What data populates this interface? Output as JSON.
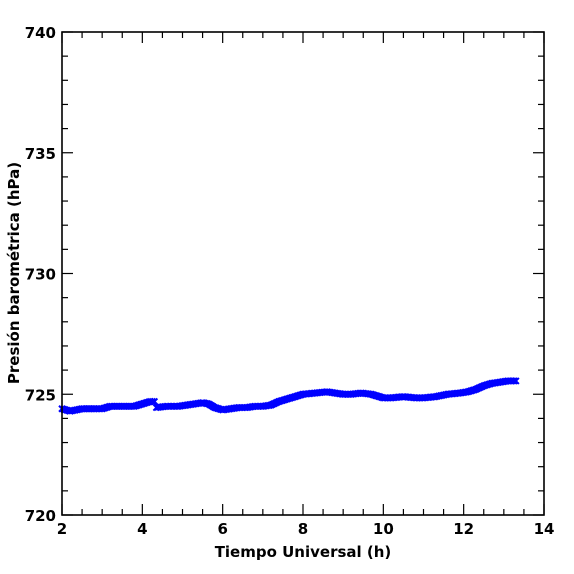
{
  "chart_data": {
    "type": "scatter",
    "title": "",
    "xlabel": "Tiempo Universal (h)",
    "ylabel": "Presión barométrica (hPa)",
    "xlim": [
      2,
      14
    ],
    "ylim": [
      720,
      740
    ],
    "x_ticks": [
      2,
      4,
      6,
      8,
      10,
      12,
      14
    ],
    "y_ticks": [
      720,
      725,
      730,
      735,
      740
    ],
    "grid": false,
    "legend": "none",
    "marker_color": "#0000ff",
    "series": [
      {
        "points": [
          [
            2.0,
            724.4
          ],
          [
            2.2,
            724.3
          ],
          [
            2.5,
            724.4
          ],
          [
            2.8,
            724.4
          ],
          [
            3.0,
            724.4
          ],
          [
            3.2,
            724.5
          ],
          [
            3.5,
            724.5
          ],
          [
            3.8,
            724.5
          ],
          [
            4.0,
            724.6
          ],
          [
            4.2,
            724.7
          ],
          [
            4.3,
            724.7
          ],
          [
            4.35,
            724.45
          ],
          [
            4.6,
            724.5
          ],
          [
            4.9,
            724.5
          ],
          [
            5.1,
            724.55
          ],
          [
            5.3,
            724.6
          ],
          [
            5.5,
            724.65
          ],
          [
            5.65,
            724.6
          ],
          [
            5.8,
            724.45
          ],
          [
            6.0,
            724.35
          ],
          [
            6.2,
            724.4
          ],
          [
            6.4,
            724.45
          ],
          [
            6.6,
            724.45
          ],
          [
            6.8,
            724.5
          ],
          [
            7.0,
            724.5
          ],
          [
            7.2,
            724.55
          ],
          [
            7.4,
            724.7
          ],
          [
            7.6,
            724.8
          ],
          [
            7.8,
            724.9
          ],
          [
            8.0,
            725.0
          ],
          [
            8.3,
            725.05
          ],
          [
            8.6,
            725.1
          ],
          [
            8.8,
            725.05
          ],
          [
            9.0,
            725.0
          ],
          [
            9.2,
            725.0
          ],
          [
            9.45,
            725.05
          ],
          [
            9.7,
            725.0
          ],
          [
            10.0,
            724.85
          ],
          [
            10.2,
            724.85
          ],
          [
            10.5,
            724.9
          ],
          [
            10.8,
            724.85
          ],
          [
            11.0,
            724.85
          ],
          [
            11.3,
            724.9
          ],
          [
            11.6,
            725.0
          ],
          [
            11.9,
            725.05
          ],
          [
            12.1,
            725.1
          ],
          [
            12.3,
            725.2
          ],
          [
            12.5,
            725.35
          ],
          [
            12.7,
            725.45
          ],
          [
            12.9,
            725.5
          ],
          [
            13.1,
            725.55
          ],
          [
            13.3,
            725.55
          ]
        ]
      }
    ]
  }
}
